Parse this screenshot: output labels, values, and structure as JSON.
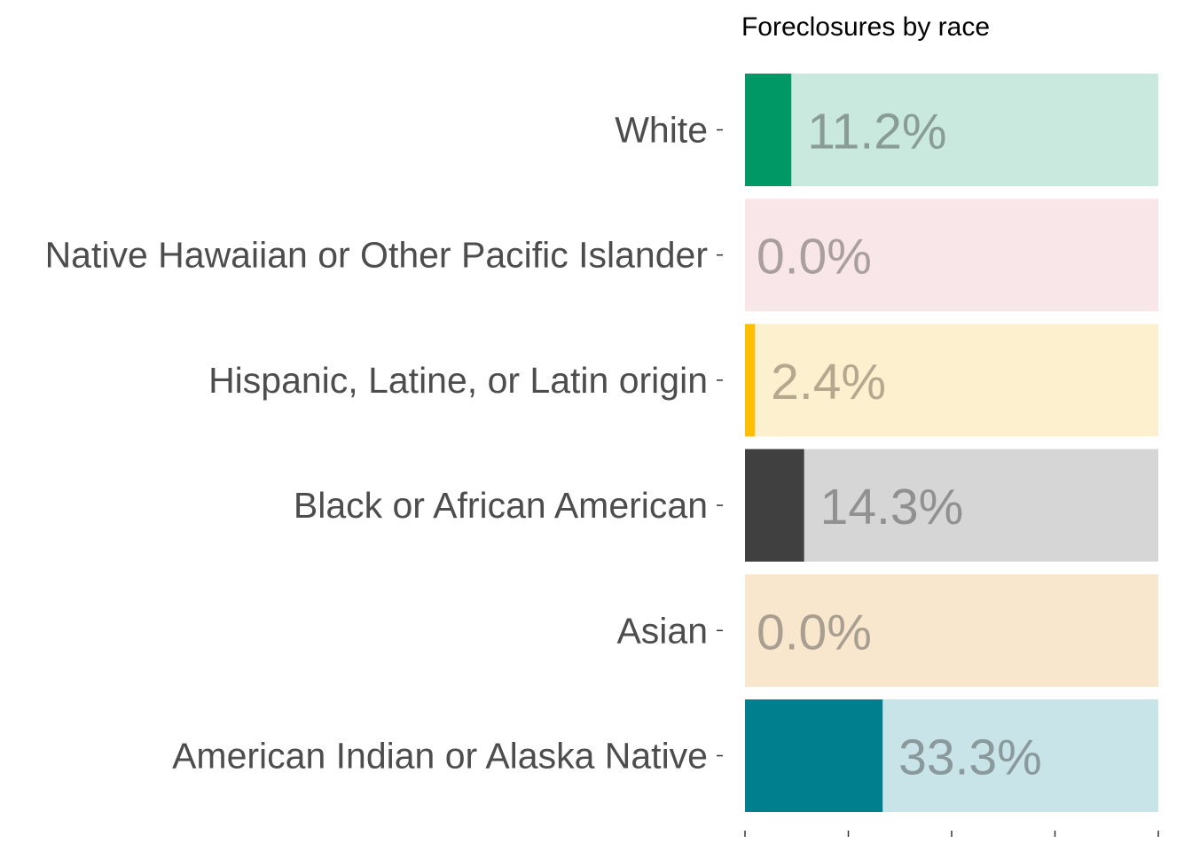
{
  "chart_data": {
    "type": "bar",
    "orientation": "horizontal",
    "title": "Foreclosures by race",
    "xlabel": "",
    "ylabel": "",
    "xlim": [
      0,
      100
    ],
    "grid": false,
    "legend": "none",
    "categories": [
      "White",
      "Native Hawaiian or Other Pacific Islander",
      "Hispanic, Latine, or Latin origin",
      "Black or African American",
      "Asian",
      "American Indian or Alaska Native"
    ],
    "values": [
      11.2,
      0.0,
      2.4,
      14.3,
      0.0,
      33.3
    ],
    "data_labels": [
      "11.2%",
      "0.0%",
      "2.4%",
      "14.3%",
      "0.0%",
      "33.3%"
    ],
    "colors": [
      "#009966",
      "#ef8a9b",
      "#ffbf00",
      "#404040",
      "#e8a04a",
      "#00808f"
    ],
    "background_colors": [
      "#c9e9de",
      "#f9e6e8",
      "#fdf0cf",
      "#d6d6d6",
      "#f8e6cd",
      "#c9e4e9"
    ],
    "label_colors": [
      "#3d3d3d",
      "#4a4a4a",
      "#5a5040",
      "#3d3d3d",
      "#4a4a4a",
      "#3d3d3d"
    ]
  }
}
